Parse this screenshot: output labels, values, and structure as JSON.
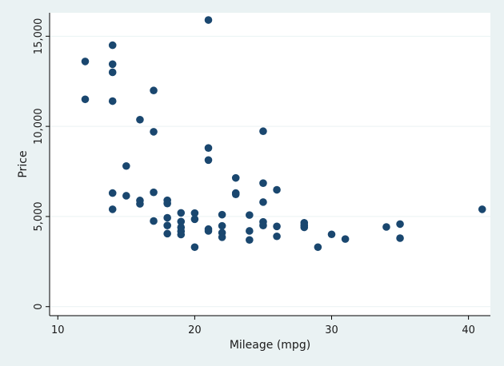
{
  "chart_data": {
    "type": "scatter",
    "title": "",
    "xlabel": "Mileage (mpg)",
    "ylabel": "Price",
    "xlim": [
      9.4,
      41.6
    ],
    "ylim": [
      -500,
      16300
    ],
    "x_ticks": [
      10,
      20,
      30,
      40
    ],
    "x_tick_labels": [
      "10",
      "20",
      "30",
      "40"
    ],
    "y_ticks": [
      0,
      5000,
      10000,
      15000
    ],
    "y_tick_labels": [
      "0",
      "5,000",
      "10,000",
      "15,000"
    ],
    "grid": "horizontal",
    "legend": "none",
    "marker_color": "#1a476f",
    "plot_background": "#ffffff",
    "outer_background": "#eaf2f3",
    "points": [
      {
        "x": 12,
        "y": 13600
      },
      {
        "x": 12,
        "y": 11500
      },
      {
        "x": 14,
        "y": 14500
      },
      {
        "x": 14,
        "y": 13450
      },
      {
        "x": 14,
        "y": 13000
      },
      {
        "x": 14,
        "y": 11400
      },
      {
        "x": 14,
        "y": 6300
      },
      {
        "x": 14,
        "y": 5400
      },
      {
        "x": 15,
        "y": 7800
      },
      {
        "x": 15,
        "y": 6150
      },
      {
        "x": 16,
        "y": 10370
      },
      {
        "x": 16,
        "y": 5890
      },
      {
        "x": 16,
        "y": 5700
      },
      {
        "x": 17,
        "y": 11990
      },
      {
        "x": 17,
        "y": 9700
      },
      {
        "x": 17,
        "y": 6340
      },
      {
        "x": 17,
        "y": 4750
      },
      {
        "x": 18,
        "y": 5900
      },
      {
        "x": 18,
        "y": 5720
      },
      {
        "x": 18,
        "y": 4930
      },
      {
        "x": 18,
        "y": 4500
      },
      {
        "x": 18,
        "y": 4050
      },
      {
        "x": 19,
        "y": 5200
      },
      {
        "x": 19,
        "y": 4720
      },
      {
        "x": 19,
        "y": 4400
      },
      {
        "x": 19,
        "y": 4180
      },
      {
        "x": 19,
        "y": 4000
      },
      {
        "x": 20,
        "y": 5190
      },
      {
        "x": 20,
        "y": 4850
      },
      {
        "x": 20,
        "y": 3300
      },
      {
        "x": 21,
        "y": 15900
      },
      {
        "x": 21,
        "y": 8800
      },
      {
        "x": 21,
        "y": 8130
      },
      {
        "x": 21,
        "y": 4300
      },
      {
        "x": 21,
        "y": 4200
      },
      {
        "x": 22,
        "y": 5100
      },
      {
        "x": 22,
        "y": 4480
      },
      {
        "x": 22,
        "y": 4100
      },
      {
        "x": 22,
        "y": 3850
      },
      {
        "x": 23,
        "y": 7140
      },
      {
        "x": 23,
        "y": 6300
      },
      {
        "x": 23,
        "y": 6230
      },
      {
        "x": 24,
        "y": 5080
      },
      {
        "x": 24,
        "y": 4200
      },
      {
        "x": 24,
        "y": 3700
      },
      {
        "x": 25,
        "y": 9730
      },
      {
        "x": 25,
        "y": 6850
      },
      {
        "x": 25,
        "y": 5800
      },
      {
        "x": 25,
        "y": 4700
      },
      {
        "x": 25,
        "y": 4500
      },
      {
        "x": 26,
        "y": 6480
      },
      {
        "x": 26,
        "y": 4450
      },
      {
        "x": 26,
        "y": 3900
      },
      {
        "x": 28,
        "y": 4650
      },
      {
        "x": 28,
        "y": 4500
      },
      {
        "x": 28,
        "y": 4400
      },
      {
        "x": 29,
        "y": 3300
      },
      {
        "x": 30,
        "y": 4010
      },
      {
        "x": 31,
        "y": 3750
      },
      {
        "x": 34,
        "y": 4420
      },
      {
        "x": 35,
        "y": 4580
      },
      {
        "x": 35,
        "y": 3800
      },
      {
        "x": 41,
        "y": 5400
      }
    ]
  }
}
